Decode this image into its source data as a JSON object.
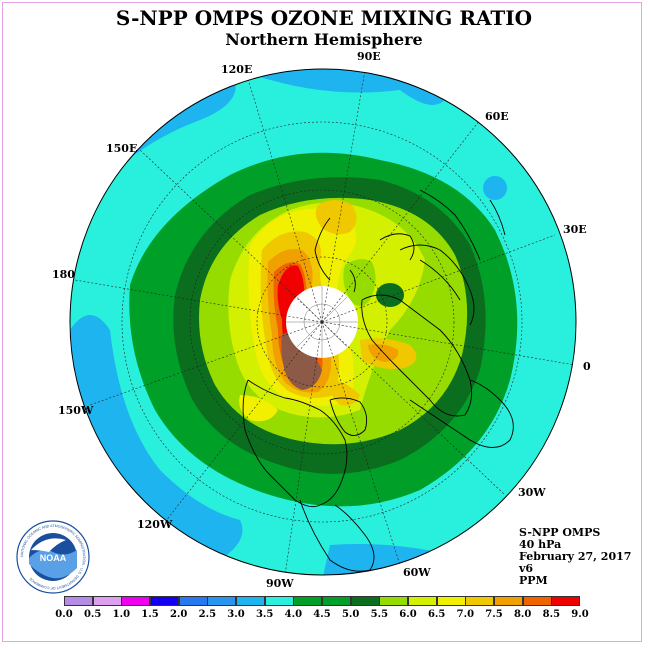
{
  "header": {
    "title": "S-NPP OMPS OZONE MIXING RATIO",
    "subtitle": "Northern Hemisphere"
  },
  "longitude_labels": {
    "lon_90e": "90E",
    "lon_120e": "120E",
    "lon_60e": "60E",
    "lon_150e": "150E",
    "lon_30e": "30E",
    "lon_180": "180",
    "lon_0": "0",
    "lon_150w": "150W",
    "lon_30w": "30W",
    "lon_120w": "120W",
    "lon_60w": "60W",
    "lon_90w": "90W"
  },
  "info": {
    "instrument": "S-NPP OMPS",
    "level": "40 hPa",
    "date": "February 27, 2017",
    "version": "v6",
    "units": "PPM"
  },
  "colorbar": {
    "ticks": [
      "0.0",
      "0.5",
      "1.0",
      "1.5",
      "2.0",
      "2.5",
      "3.0",
      "3.5",
      "4.0",
      "4.5",
      "5.0",
      "5.5",
      "6.0",
      "6.5",
      "7.0",
      "7.5",
      "8.0",
      "8.5",
      "9.0"
    ],
    "colors": [
      "#b48ce6",
      "#dca0ee",
      "#ee00ee",
      "#1400f0",
      "#2878f0",
      "#2896f0",
      "#1eb4f0",
      "#28f0dc",
      "#00a028",
      "#00a028",
      "#0a6e1e",
      "#96dc00",
      "#d2f000",
      "#f0f000",
      "#f0c800",
      "#f0a000",
      "#f06400",
      "#f00000",
      "#8c5a46"
    ]
  },
  "logo": {
    "text": "NOAA",
    "ring_text": "NATIONAL OCEANIC AND ATMOSPHERIC ADMINISTRATION · U.S. DEPARTMENT OF COMMERCE"
  }
}
